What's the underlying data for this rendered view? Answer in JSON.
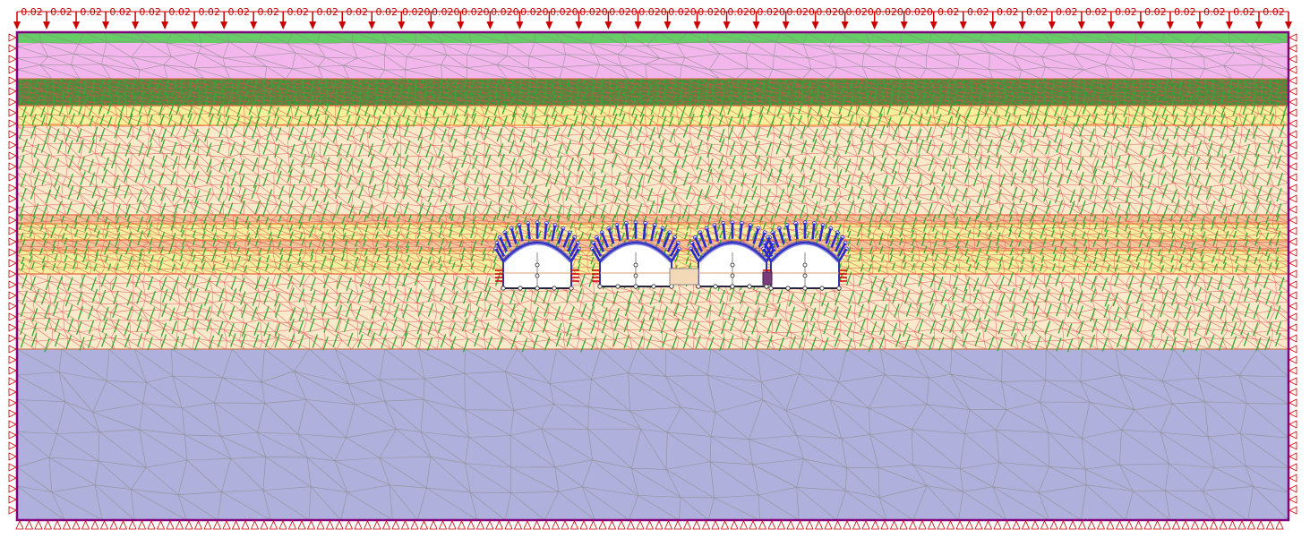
{
  "diagram": {
    "type": "finite-element-model",
    "load_labels": [
      "0.02",
      "0.02",
      "0.02",
      "0.02",
      "0.02",
      "0.02",
      "0.02",
      "0.02",
      "0.02",
      "0.02",
      "0.02",
      "0.02",
      "0.02",
      "0.020",
      "0.020",
      "0.020",
      "0.020",
      "0.020",
      "0.020",
      "0.020",
      "0.020",
      "0.020",
      "0.020",
      "0.020",
      "0.020",
      "0.020",
      "0.020",
      "0.020",
      "0.020",
      "0.020",
      "0.020",
      "0.02",
      "0.02",
      "0.02",
      "0.02",
      "0.02",
      "0.02",
      "0.02",
      "0.02",
      "0.02",
      "0.02",
      "0.02",
      "0.02"
    ],
    "soil_layers": [
      {
        "name": "surface-strip",
        "color": "#66cc66"
      },
      {
        "name": "pink-layer",
        "color": "#f2b6ec"
      },
      {
        "name": "dark-green-layer",
        "color": "#4d8a3c"
      },
      {
        "name": "yellow-layer",
        "color": "#f7f09a"
      },
      {
        "name": "cream-layer",
        "color": "#fbe9cc"
      },
      {
        "name": "orange-band",
        "color": "#f1c49a"
      },
      {
        "name": "yellow-band",
        "color": "#f5ef9e"
      },
      {
        "name": "lavender-layer",
        "color": "#b0b0dc"
      }
    ],
    "colors": {
      "boundary": "#800080",
      "load_arrow": "#cc0000",
      "mesh_red": "#e05050",
      "mesh_green": "#33aa33",
      "mesh_grey": "#8c8c8c",
      "anchor_blue": "#2a2ad0",
      "tunnel_fill": "#ffffff"
    },
    "tunnels": [
      {
        "name": "tunnel-1"
      },
      {
        "name": "tunnel-2"
      },
      {
        "name": "tunnel-3"
      },
      {
        "name": "tunnel-4"
      }
    ]
  }
}
